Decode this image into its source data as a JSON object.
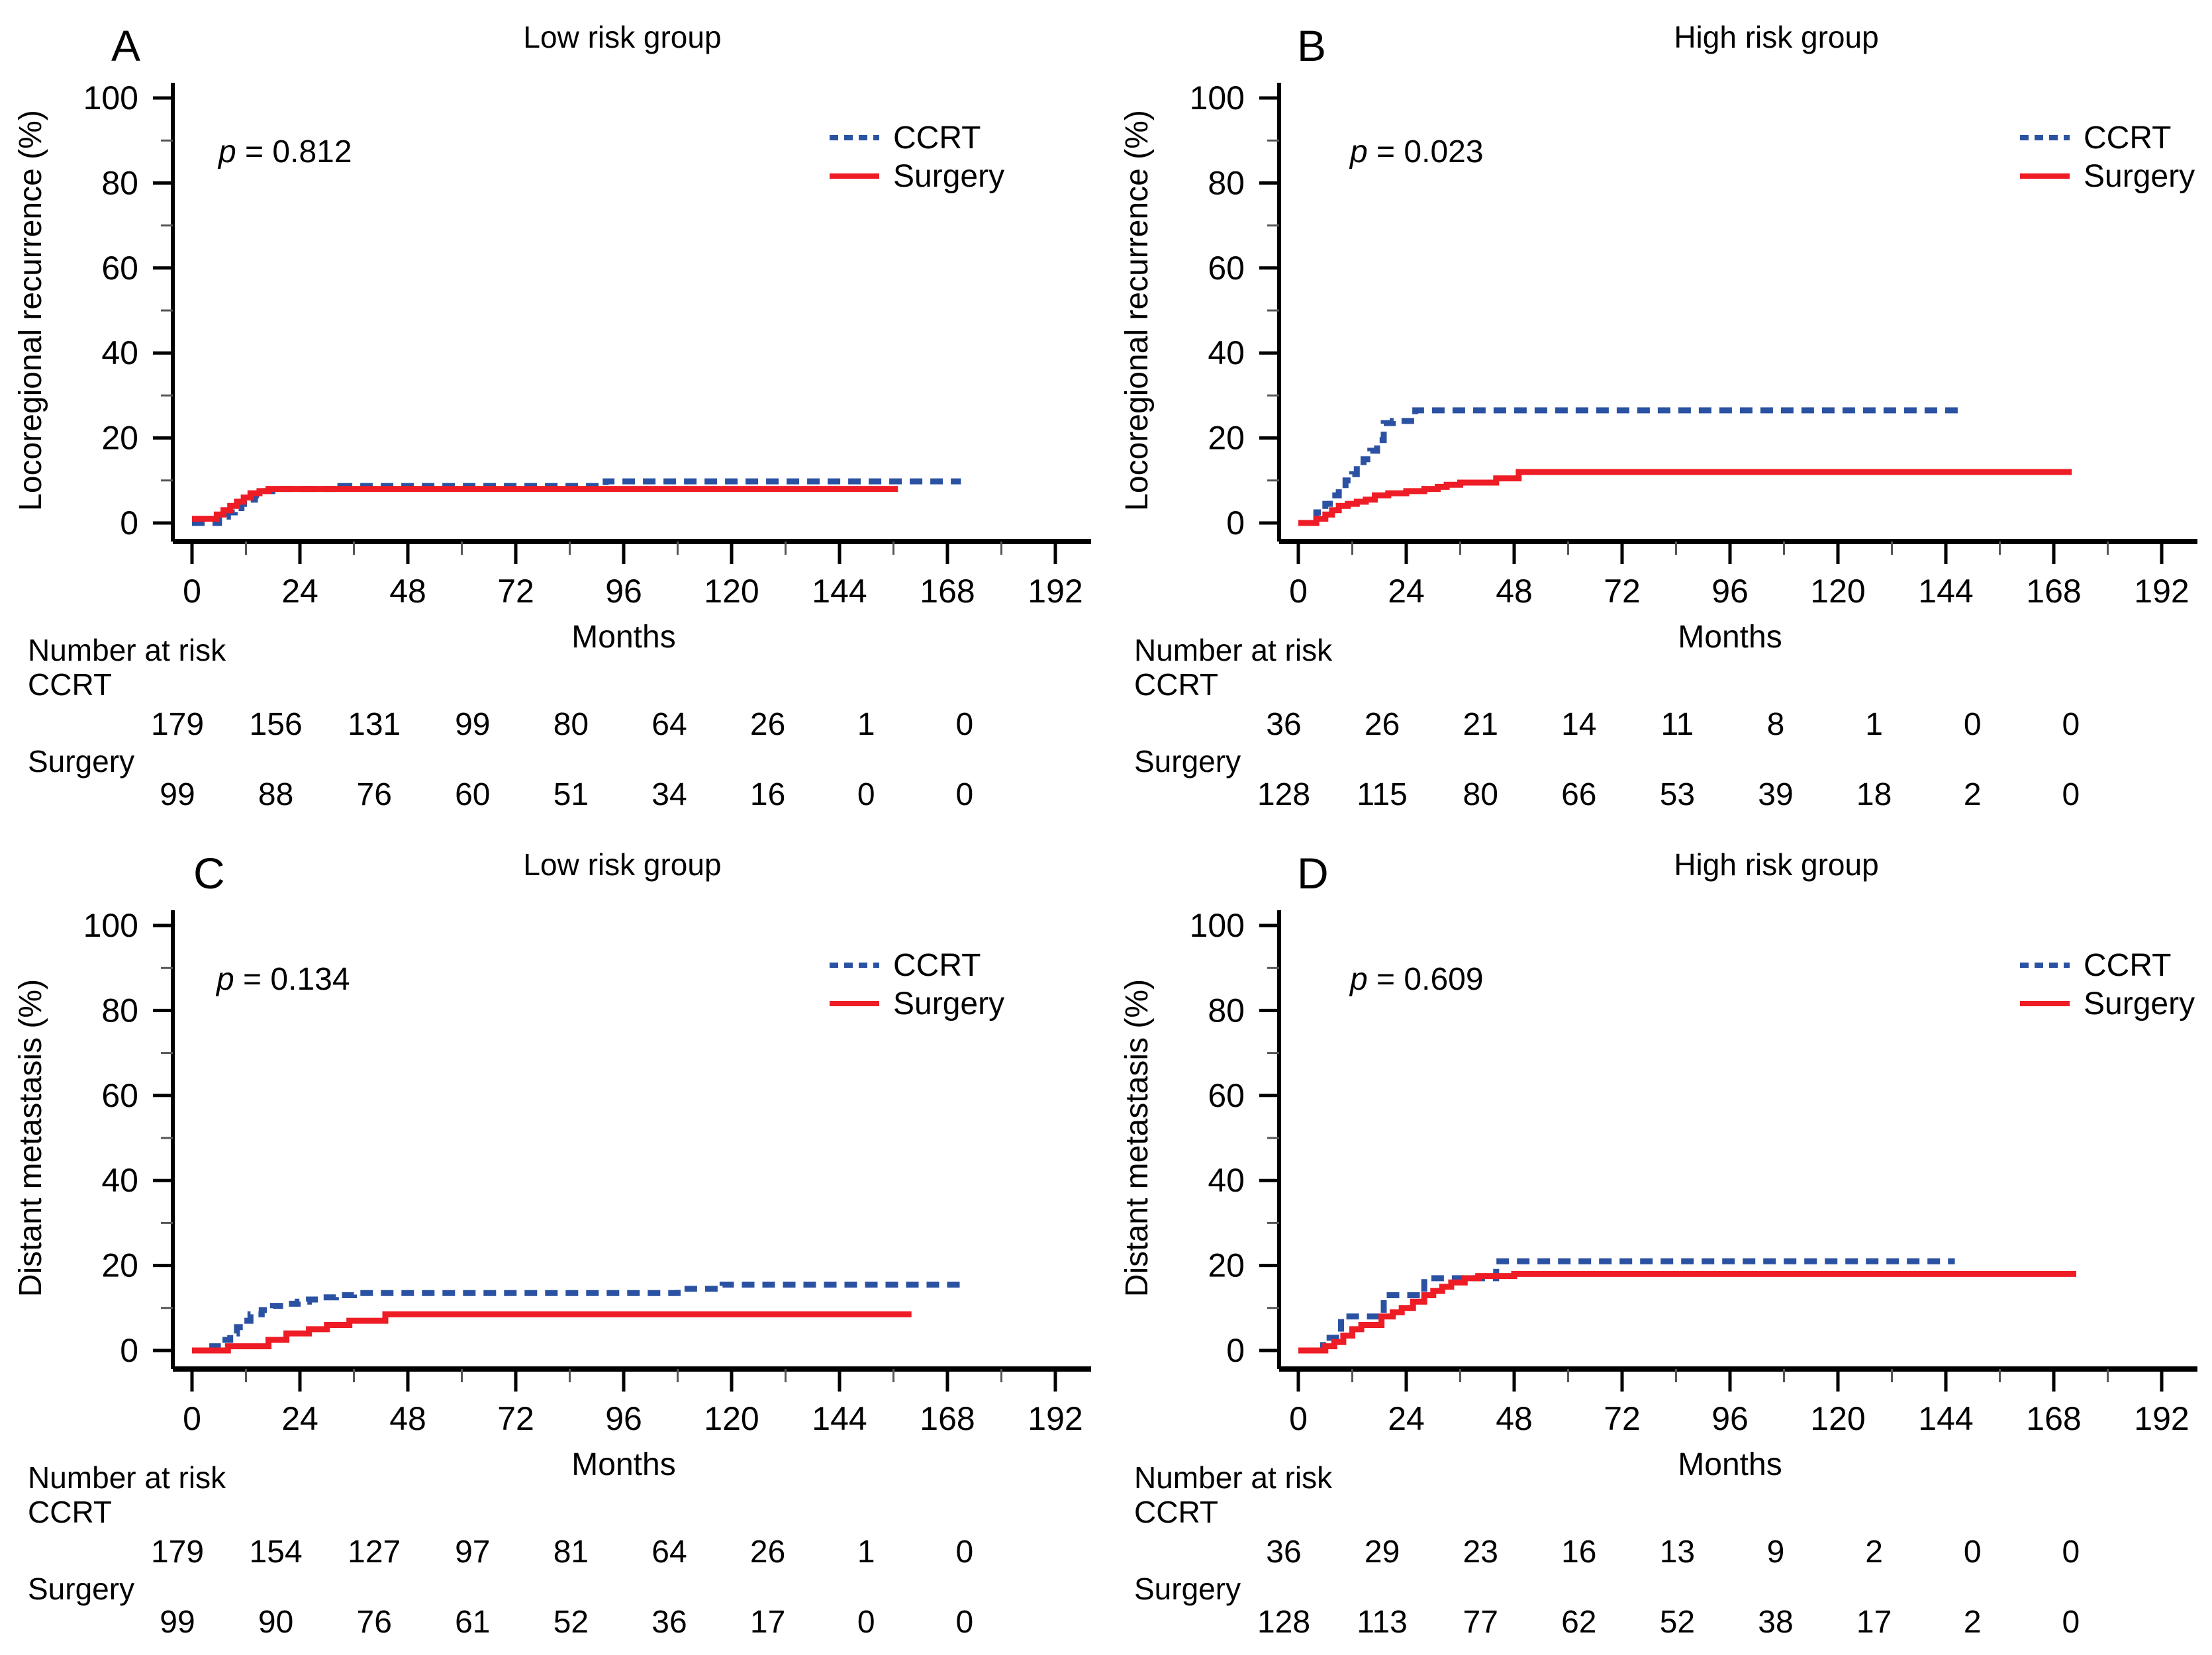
{
  "figure": {
    "xlabel": "Months",
    "risk_header": "Number at risk",
    "x_ticks": [
      0,
      24,
      48,
      72,
      96,
      120,
      144,
      168,
      192
    ],
    "x_minor_ticks": [
      12,
      36,
      60,
      84,
      108,
      132,
      156,
      180
    ],
    "y_ticks": [
      0,
      20,
      40,
      60,
      80,
      100
    ],
    "y_minor_ticks": [
      10,
      30,
      50,
      70,
      90
    ],
    "colors": {
      "ccrt": "#2b52a2",
      "surgery": "#ee1c25",
      "risk_label": "#2424cb",
      "axis": "#000000"
    },
    "legend_labels": [
      "CCRT",
      "Surgery"
    ]
  },
  "chart_data": [
    {
      "id": "A",
      "type": "line",
      "title": "Low risk group",
      "ylabel": "Locoregional recurrence (%)",
      "xlabel": "Months",
      "p_label": "p = 0.812",
      "xlim": [
        0,
        192
      ],
      "ylim": [
        0,
        100
      ],
      "grid": false,
      "legend_position": "top-right",
      "series": [
        {
          "name": "CCRT",
          "style": "dashed",
          "color_key": "ccrt",
          "steps": [
            [
              0,
              0
            ],
            [
              6,
              1.5
            ],
            [
              8,
              2.5
            ],
            [
              9.5,
              3.5
            ],
            [
              11,
              4.5
            ],
            [
              12.5,
              5.5
            ],
            [
              14,
              6.5
            ],
            [
              16,
              7.5
            ],
            [
              19,
              8
            ],
            [
              33,
              8.7
            ],
            [
              92,
              9.8
            ],
            [
              171,
              9.8
            ]
          ]
        },
        {
          "name": "Surgery",
          "style": "solid",
          "color_key": "surgery",
          "steps": [
            [
              0,
              1
            ],
            [
              5.5,
              2
            ],
            [
              7,
              3
            ],
            [
              8.5,
              4
            ],
            [
              10,
              5
            ],
            [
              11.5,
              6
            ],
            [
              13,
              7
            ],
            [
              15,
              7.5
            ],
            [
              17,
              8
            ],
            [
              157,
              8
            ]
          ]
        }
      ],
      "number_at_risk": [
        {
          "name": "CCRT",
          "values": [
            179,
            156,
            131,
            99,
            80,
            64,
            26,
            1,
            0
          ]
        },
        {
          "name": "Surgery",
          "values": [
            99,
            88,
            76,
            60,
            51,
            34,
            16,
            0,
            0
          ]
        }
      ]
    },
    {
      "id": "B",
      "type": "line",
      "title": "High risk group",
      "ylabel": "Locoregional recurrence (%)",
      "xlabel": "Months",
      "p_label": "p = 0.023",
      "xlim": [
        0,
        192
      ],
      "ylim": [
        0,
        100
      ],
      "grid": false,
      "legend_position": "top-right",
      "series": [
        {
          "name": "CCRT",
          "style": "dashed",
          "color_key": "ccrt",
          "steps": [
            [
              0,
              0
            ],
            [
              4,
              2.5
            ],
            [
              6,
              4.5
            ],
            [
              7,
              6.5
            ],
            [
              9,
              8
            ],
            [
              10.5,
              10
            ],
            [
              12,
              11.5
            ],
            [
              13,
              13.5
            ],
            [
              14.5,
              15
            ],
            [
              16,
              17
            ],
            [
              17.5,
              19.5
            ],
            [
              19,
              23.5
            ],
            [
              21,
              24
            ],
            [
              26,
              26.5
            ],
            [
              148,
              26.5
            ]
          ]
        },
        {
          "name": "Surgery",
          "style": "solid",
          "color_key": "surgery",
          "steps": [
            [
              0,
              0
            ],
            [
              4,
              1
            ],
            [
              6,
              2
            ],
            [
              7.5,
              3
            ],
            [
              9,
              4
            ],
            [
              11,
              4.5
            ],
            [
              13,
              5
            ],
            [
              15,
              5.5
            ],
            [
              17,
              6.5
            ],
            [
              20,
              7
            ],
            [
              24,
              7.5
            ],
            [
              28,
              8
            ],
            [
              31,
              8.5
            ],
            [
              33,
              9
            ],
            [
              36,
              9.5
            ],
            [
              44,
              10.5
            ],
            [
              49,
              12
            ],
            [
              172,
              12
            ]
          ]
        }
      ],
      "number_at_risk": [
        {
          "name": "CCRT",
          "values": [
            36,
            26,
            21,
            14,
            11,
            8,
            1,
            0,
            0
          ]
        },
        {
          "name": "Surgery",
          "values": [
            128,
            115,
            80,
            66,
            53,
            39,
            18,
            2,
            0
          ]
        }
      ]
    },
    {
      "id": "C",
      "type": "line",
      "title": "Low risk group",
      "ylabel": "Distant metastasis (%)",
      "xlabel": "Months",
      "p_label": "p = 0.134",
      "xlim": [
        0,
        192
      ],
      "ylim": [
        0,
        100
      ],
      "grid": false,
      "legend_position": "top-right",
      "series": [
        {
          "name": "CCRT",
          "style": "dashed",
          "color_key": "ccrt",
          "steps": [
            [
              0,
              0
            ],
            [
              4.5,
              1
            ],
            [
              6.5,
              2.5
            ],
            [
              8.5,
              4
            ],
            [
              10,
              5.5
            ],
            [
              11.5,
              7
            ],
            [
              13,
              8.5
            ],
            [
              15.5,
              9.5
            ],
            [
              18,
              10.5
            ],
            [
              21,
              11
            ],
            [
              23.5,
              11.5
            ],
            [
              26,
              12
            ],
            [
              29,
              12.5
            ],
            [
              32,
              13
            ],
            [
              36,
              13.5
            ],
            [
              108,
              14.5
            ],
            [
              118,
              15.5
            ],
            [
              172,
              15.5
            ]
          ]
        },
        {
          "name": "Surgery",
          "style": "solid",
          "color_key": "surgery",
          "steps": [
            [
              0,
              0
            ],
            [
              8,
              1
            ],
            [
              17,
              2.5
            ],
            [
              21,
              4
            ],
            [
              26,
              5
            ],
            [
              30,
              6
            ],
            [
              35,
              7
            ],
            [
              43,
              8.5
            ],
            [
              160,
              8.5
            ]
          ]
        }
      ],
      "number_at_risk": [
        {
          "name": "CCRT",
          "values": [
            179,
            154,
            127,
            97,
            81,
            64,
            26,
            1,
            0
          ]
        },
        {
          "name": "Surgery",
          "values": [
            99,
            90,
            76,
            61,
            52,
            36,
            17,
            0,
            0
          ]
        }
      ]
    },
    {
      "id": "D",
      "type": "line",
      "title": "High risk group",
      "ylabel": "Distant metastasis (%)",
      "xlabel": "Months",
      "p_label": "p = 0.609",
      "xlim": [
        0,
        192
      ],
      "ylim": [
        0,
        100
      ],
      "grid": false,
      "legend_position": "top-right",
      "series": [
        {
          "name": "CCRT",
          "style": "dashed",
          "color_key": "ccrt",
          "steps": [
            [
              0,
              0
            ],
            [
              5.5,
              3
            ],
            [
              9.5,
              8
            ],
            [
              19,
              13
            ],
            [
              28,
              17
            ],
            [
              44,
              21
            ],
            [
              146,
              21
            ]
          ]
        },
        {
          "name": "Surgery",
          "style": "solid",
          "color_key": "surgery",
          "steps": [
            [
              0,
              0
            ],
            [
              6,
              1
            ],
            [
              8,
              2
            ],
            [
              10,
              3.5
            ],
            [
              12,
              5
            ],
            [
              14,
              6
            ],
            [
              18.5,
              8
            ],
            [
              21,
              9
            ],
            [
              23,
              10
            ],
            [
              25.5,
              11.5
            ],
            [
              28,
              13
            ],
            [
              30,
              14
            ],
            [
              32,
              15
            ],
            [
              34,
              16
            ],
            [
              37,
              17
            ],
            [
              40,
              17.5
            ],
            [
              48,
              18
            ],
            [
              173,
              18
            ]
          ]
        }
      ],
      "number_at_risk": [
        {
          "name": "CCRT",
          "values": [
            36,
            29,
            23,
            16,
            13,
            9,
            2,
            0,
            0
          ]
        },
        {
          "name": "Surgery",
          "values": [
            128,
            113,
            77,
            62,
            52,
            38,
            17,
            2,
            0
          ]
        }
      ]
    }
  ]
}
